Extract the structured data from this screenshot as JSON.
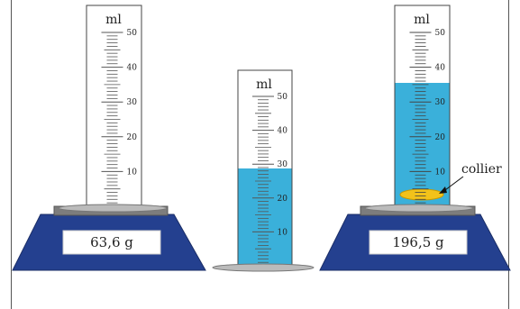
{
  "unit_label": "ml",
  "tick_labels": [
    "10",
    "20",
    "30",
    "40",
    "50"
  ],
  "scales": {
    "left": {
      "reading": "63,6 g"
    },
    "right": {
      "reading": "196,5 g"
    }
  },
  "cylinders": {
    "left": {
      "liquid_ml": 0
    },
    "middle": {
      "liquid_ml": 31
    },
    "right": {
      "liquid_ml": 40,
      "object_label": "collier"
    }
  },
  "colors": {
    "liquid": "#3ab0da",
    "scale_body": "#24408f",
    "scale_plate": "#7d7d7d",
    "necklace": "#f2c21a"
  }
}
